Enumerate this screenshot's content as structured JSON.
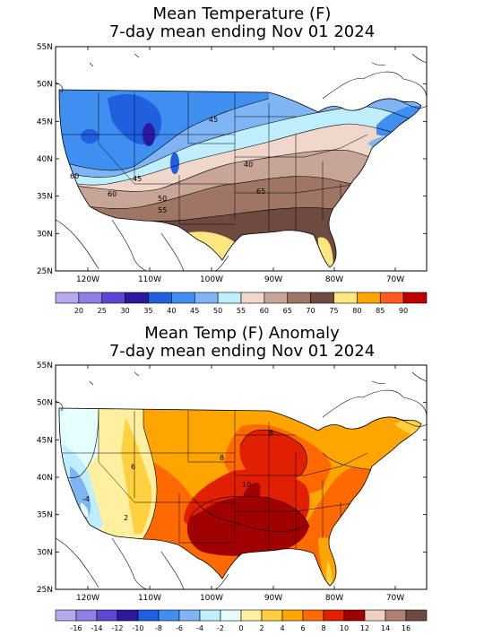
{
  "map1": {
    "title_line1": "Mean Temperature (F)",
    "title_line2": "7-day mean ending Nov 01 2024",
    "lat_labels": [
      "55N",
      "50N",
      "45N",
      "40N",
      "35N",
      "30N",
      "25N"
    ],
    "lon_labels": [
      "120W",
      "110W",
      "100W",
      "90W",
      "80W",
      "70W"
    ],
    "colorbar_colors": [
      "#b9a8f0",
      "#8f7fe6",
      "#5b48d2",
      "#2b1a9e",
      "#1f5fe0",
      "#3f8ff0",
      "#7fb5f5",
      "#bfefff",
      "#efd7cc",
      "#c7a597",
      "#9f7565",
      "#6f4a40",
      "#ffe680",
      "#ffa500",
      "#ff5a1f",
      "#c00000"
    ],
    "colorbar_labels": [
      "20",
      "25",
      "30",
      "35",
      "40",
      "45",
      "50",
      "55",
      "60",
      "65",
      "70",
      "75",
      "80",
      "85",
      "90"
    ],
    "contour_labels": [
      "45",
      "40",
      "45",
      "50",
      "55",
      "60",
      "60",
      "65"
    ]
  },
  "map2": {
    "title_line1": "Mean Temp (F) Anomaly",
    "title_line2": "7-day mean ending Nov 01 2024",
    "lat_labels": [
      "55N",
      "50N",
      "45N",
      "40N",
      "35N",
      "30N",
      "25N"
    ],
    "lon_labels": [
      "120W",
      "110W",
      "100W",
      "90W",
      "80W",
      "70W"
    ],
    "colorbar_colors": [
      "#b9a8f0",
      "#8f7fe6",
      "#5b48d2",
      "#2b1a9e",
      "#1f5fe0",
      "#3f8ff0",
      "#7fb5f5",
      "#bfefff",
      "#e6ffff",
      "#fff0a0",
      "#ffd040",
      "#ffa500",
      "#ff6a00",
      "#e02000",
      "#a00000",
      "#f0d0c0",
      "#b08070",
      "#6f4a40"
    ],
    "colorbar_labels": [
      "-16",
      "-14",
      "-12",
      "-10",
      "-8",
      "-6",
      "-4",
      "-2",
      "0",
      "2",
      "4",
      "6",
      "8",
      "10",
      "12",
      "14",
      "16"
    ],
    "contour_labels": [
      "-4",
      "2",
      "6",
      "8",
      "8",
      "10"
    ]
  }
}
